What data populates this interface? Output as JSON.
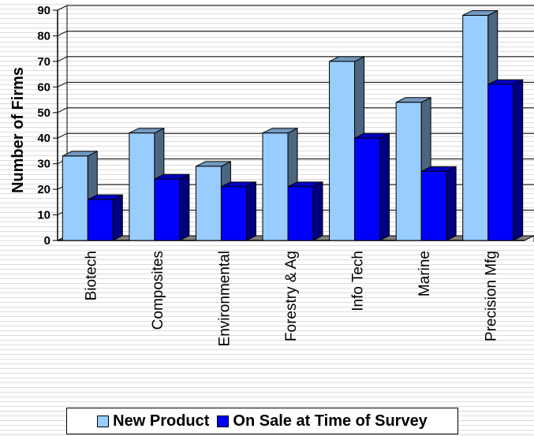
{
  "chart_data": {
    "type": "bar",
    "ylabel": "Number of Firms",
    "xlabel": "",
    "ylim": [
      0,
      90
    ],
    "yticks": [
      0,
      10,
      20,
      30,
      40,
      50,
      60,
      70,
      80,
      90
    ],
    "categories": [
      "Biotech",
      "Composites",
      "Environmental",
      "Forestry & Ag",
      "Info Tech",
      "Marine",
      "Precision Mfg"
    ],
    "series": [
      {
        "name": "New Product",
        "values": [
          33,
          42,
          29,
          42,
          70,
          54,
          88
        ],
        "color": "#99ccff"
      },
      {
        "name": "On Sale at Time of Survey",
        "values": [
          16,
          24,
          21,
          21,
          40,
          27,
          61
        ],
        "color": "#0000ff"
      }
    ],
    "grid": true,
    "legend": "bottom"
  }
}
